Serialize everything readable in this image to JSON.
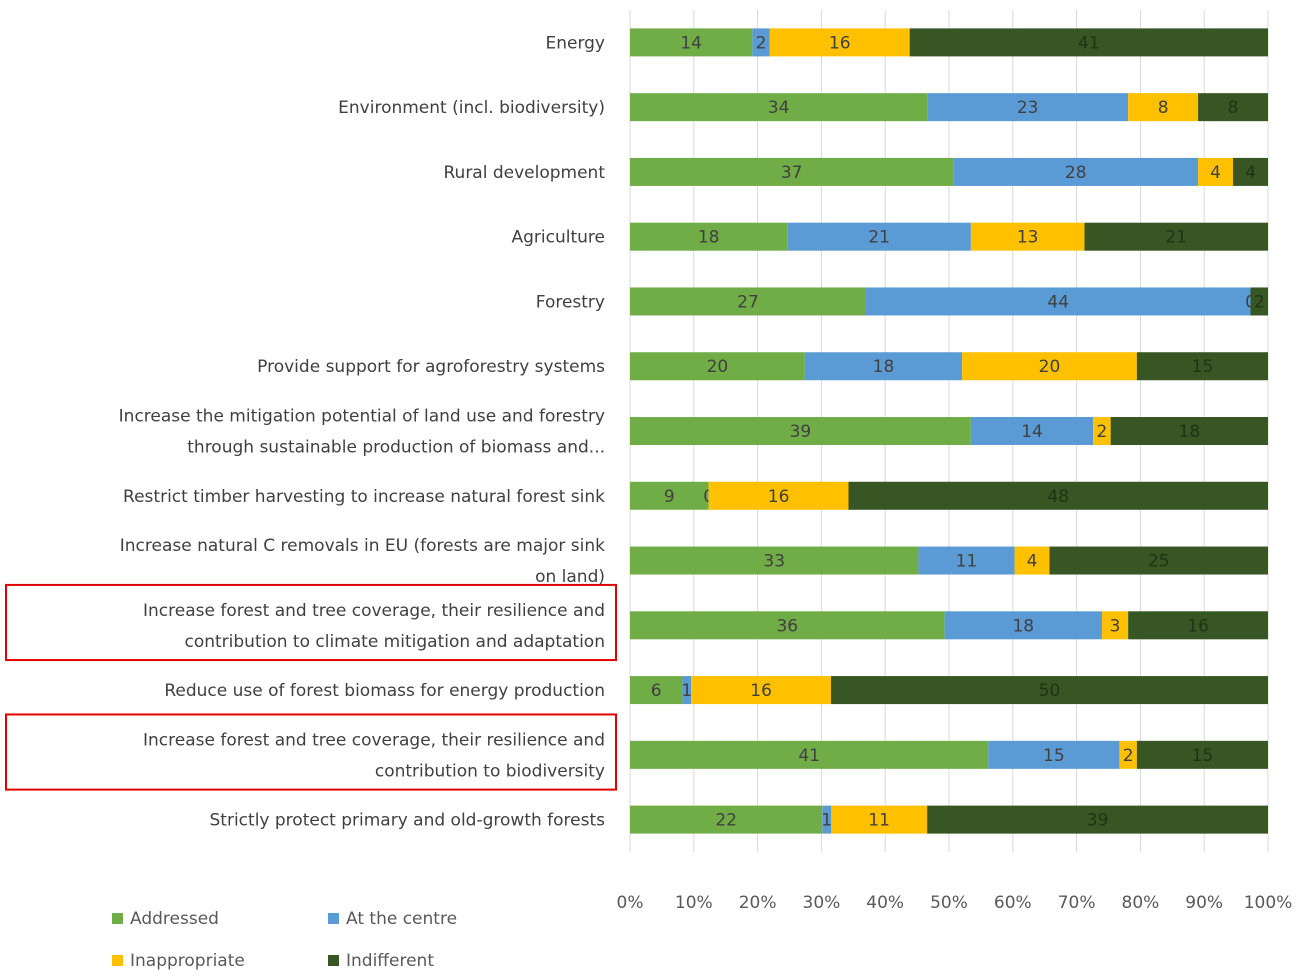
{
  "chart_data": {
    "type": "bar",
    "orientation": "horizontal",
    "stacked": "percent",
    "categories": [
      [
        "Energy"
      ],
      [
        "Environment (incl. biodiversity)"
      ],
      [
        "Rural development"
      ],
      [
        "Agriculture"
      ],
      [
        "Forestry"
      ],
      [
        "Provide support for agroforestry systems"
      ],
      [
        "Increase the mitigation potential of land use and forestry",
        "through sustainable production of biomass and..."
      ],
      [
        "Restrict timber harvesting to increase natural forest sink"
      ],
      [
        "Increase natural C removals in EU (forests are major sink",
        "on land)"
      ],
      [
        "Increase forest and tree coverage, their resilience and",
        "contribution to climate mitigation and adaptation"
      ],
      [
        "Reduce use of forest biomass for energy production"
      ],
      [
        "Increase forest and tree coverage, their resilience and",
        "contribution to biodiversity"
      ],
      [
        "Strictly protect primary and old-growth forests"
      ]
    ],
    "highlighted_categories": [
      9,
      11
    ],
    "series": [
      {
        "name": "Addressed",
        "color": "#70ad47",
        "values": [
          14,
          34,
          37,
          18,
          27,
          20,
          39,
          9,
          33,
          36,
          6,
          41,
          22
        ]
      },
      {
        "name": "At the centre",
        "color": "#5b9bd5",
        "values": [
          2,
          23,
          28,
          21,
          44,
          18,
          14,
          0,
          11,
          18,
          1,
          15,
          1
        ]
      },
      {
        "name": "Inappropriate",
        "color": "#ffc000",
        "values": [
          16,
          8,
          4,
          13,
          0,
          20,
          2,
          16,
          4,
          3,
          16,
          2,
          11
        ]
      },
      {
        "name": "Indifferent",
        "color": "#375623",
        "values": [
          41,
          8,
          4,
          21,
          2,
          15,
          18,
          48,
          25,
          16,
          50,
          15,
          39
        ]
      }
    ],
    "x_ticks": [
      "0%",
      "10%",
      "20%",
      "30%",
      "40%",
      "50%",
      "60%",
      "70%",
      "80%",
      "90%",
      "100%"
    ],
    "xlim": [
      0,
      100
    ],
    "grid": true,
    "legend_position": "bottom-left",
    "highlight_color": "#e00000"
  }
}
